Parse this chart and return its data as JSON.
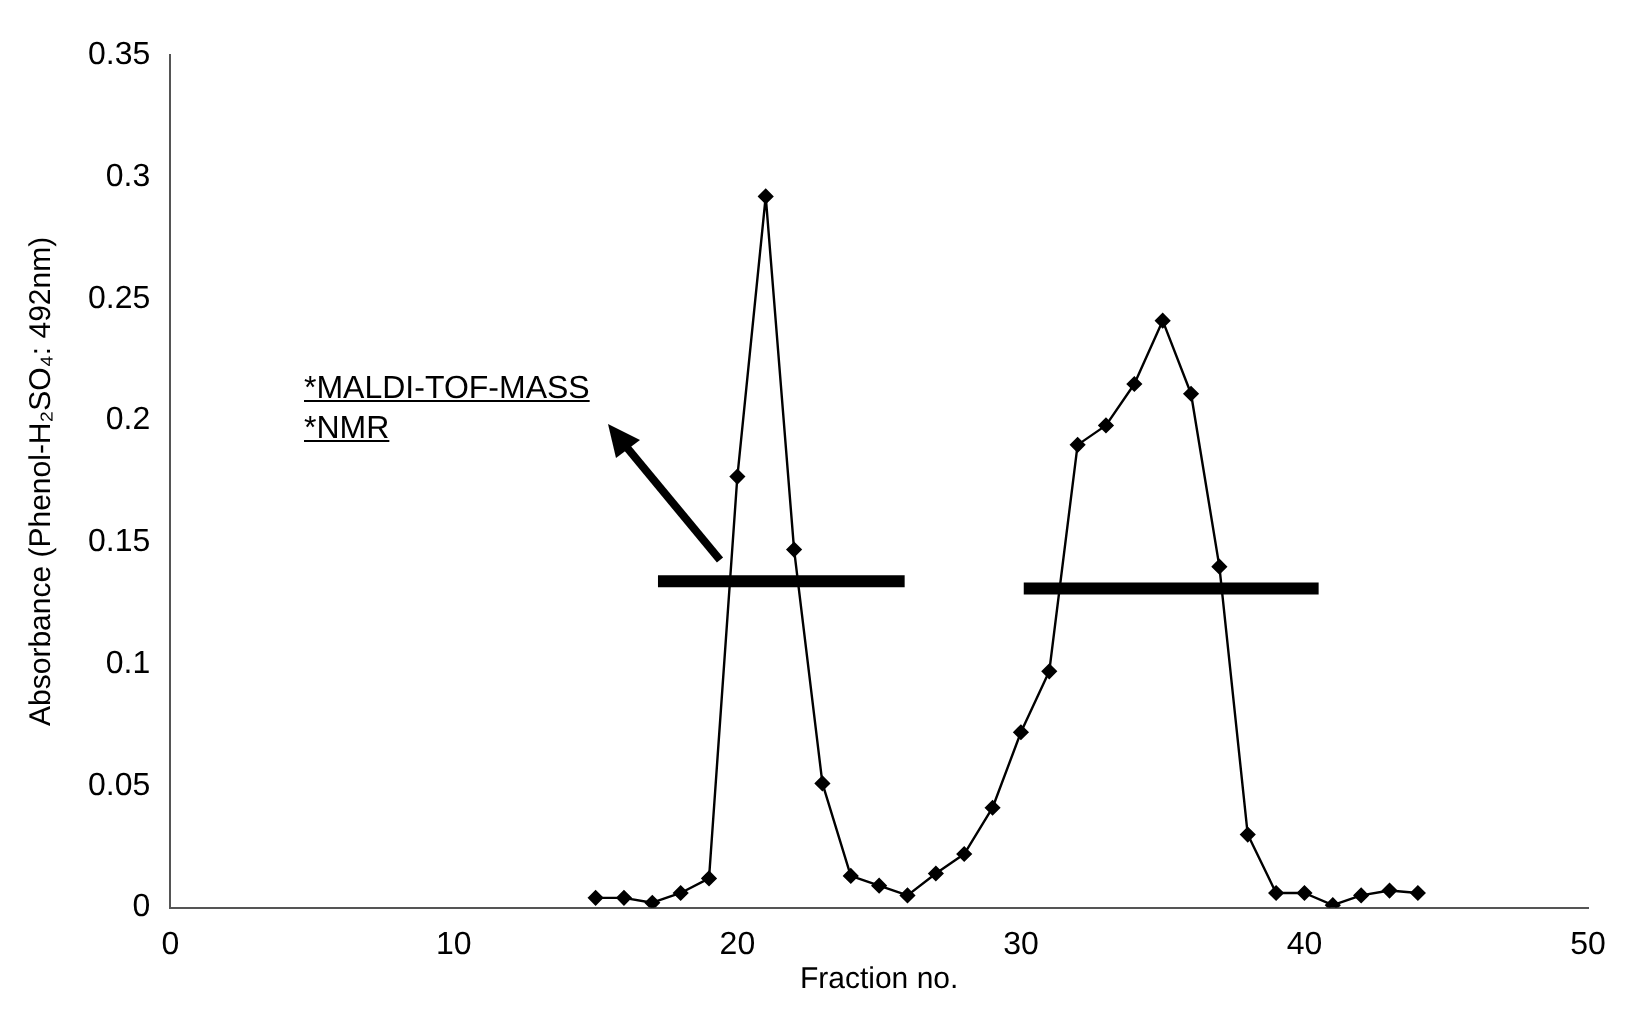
{
  "chart_data": {
    "type": "line",
    "xlabel": "Fraction no.",
    "ylabel": "Absorbance (Phenol-H₂SO₄: 492nm)",
    "xlim": [
      0,
      50
    ],
    "xticks": [
      0,
      10,
      20,
      30,
      40,
      50
    ],
    "ylim": [
      0,
      0.35
    ],
    "yticks": [
      0,
      0.05,
      0.1,
      0.15,
      0.2,
      0.25,
      0.3,
      0.35
    ],
    "grid": false,
    "legend": false,
    "marker": "diamond",
    "line_style": "solid",
    "annotations": [
      "*MALDI-TOF-MASS",
      "*NMR"
    ],
    "series": [
      {
        "color": "#000000",
        "x": [
          15,
          16,
          17,
          18,
          19,
          20,
          21,
          22,
          23,
          24,
          25,
          26,
          27,
          28,
          29,
          30,
          31,
          32,
          33,
          34,
          35,
          36,
          37,
          38,
          39,
          40,
          41,
          42,
          43,
          44
        ],
        "values": [
          0.004,
          0.004,
          0.002,
          0.006,
          0.012,
          0.177,
          0.292,
          0.147,
          0.051,
          0.013,
          0.009,
          0.005,
          0.014,
          0.022,
          0.041,
          0.072,
          0.097,
          0.19,
          0.198,
          0.215,
          0.241,
          0.211,
          0.14,
          0.03,
          0.006,
          0.006,
          0.001,
          0.005,
          0.007,
          0.006
        ]
      },
      {
        "color": "#000000",
        "marker": "none",
        "x": [
          17.2,
          25.9
        ],
        "values": [
          0.134,
          0.134
        ]
      },
      {
        "color": "#000000",
        "marker": "none",
        "x": [
          30.1,
          40.5
        ],
        "values": [
          0.131,
          0.131
        ]
      }
    ]
  }
}
